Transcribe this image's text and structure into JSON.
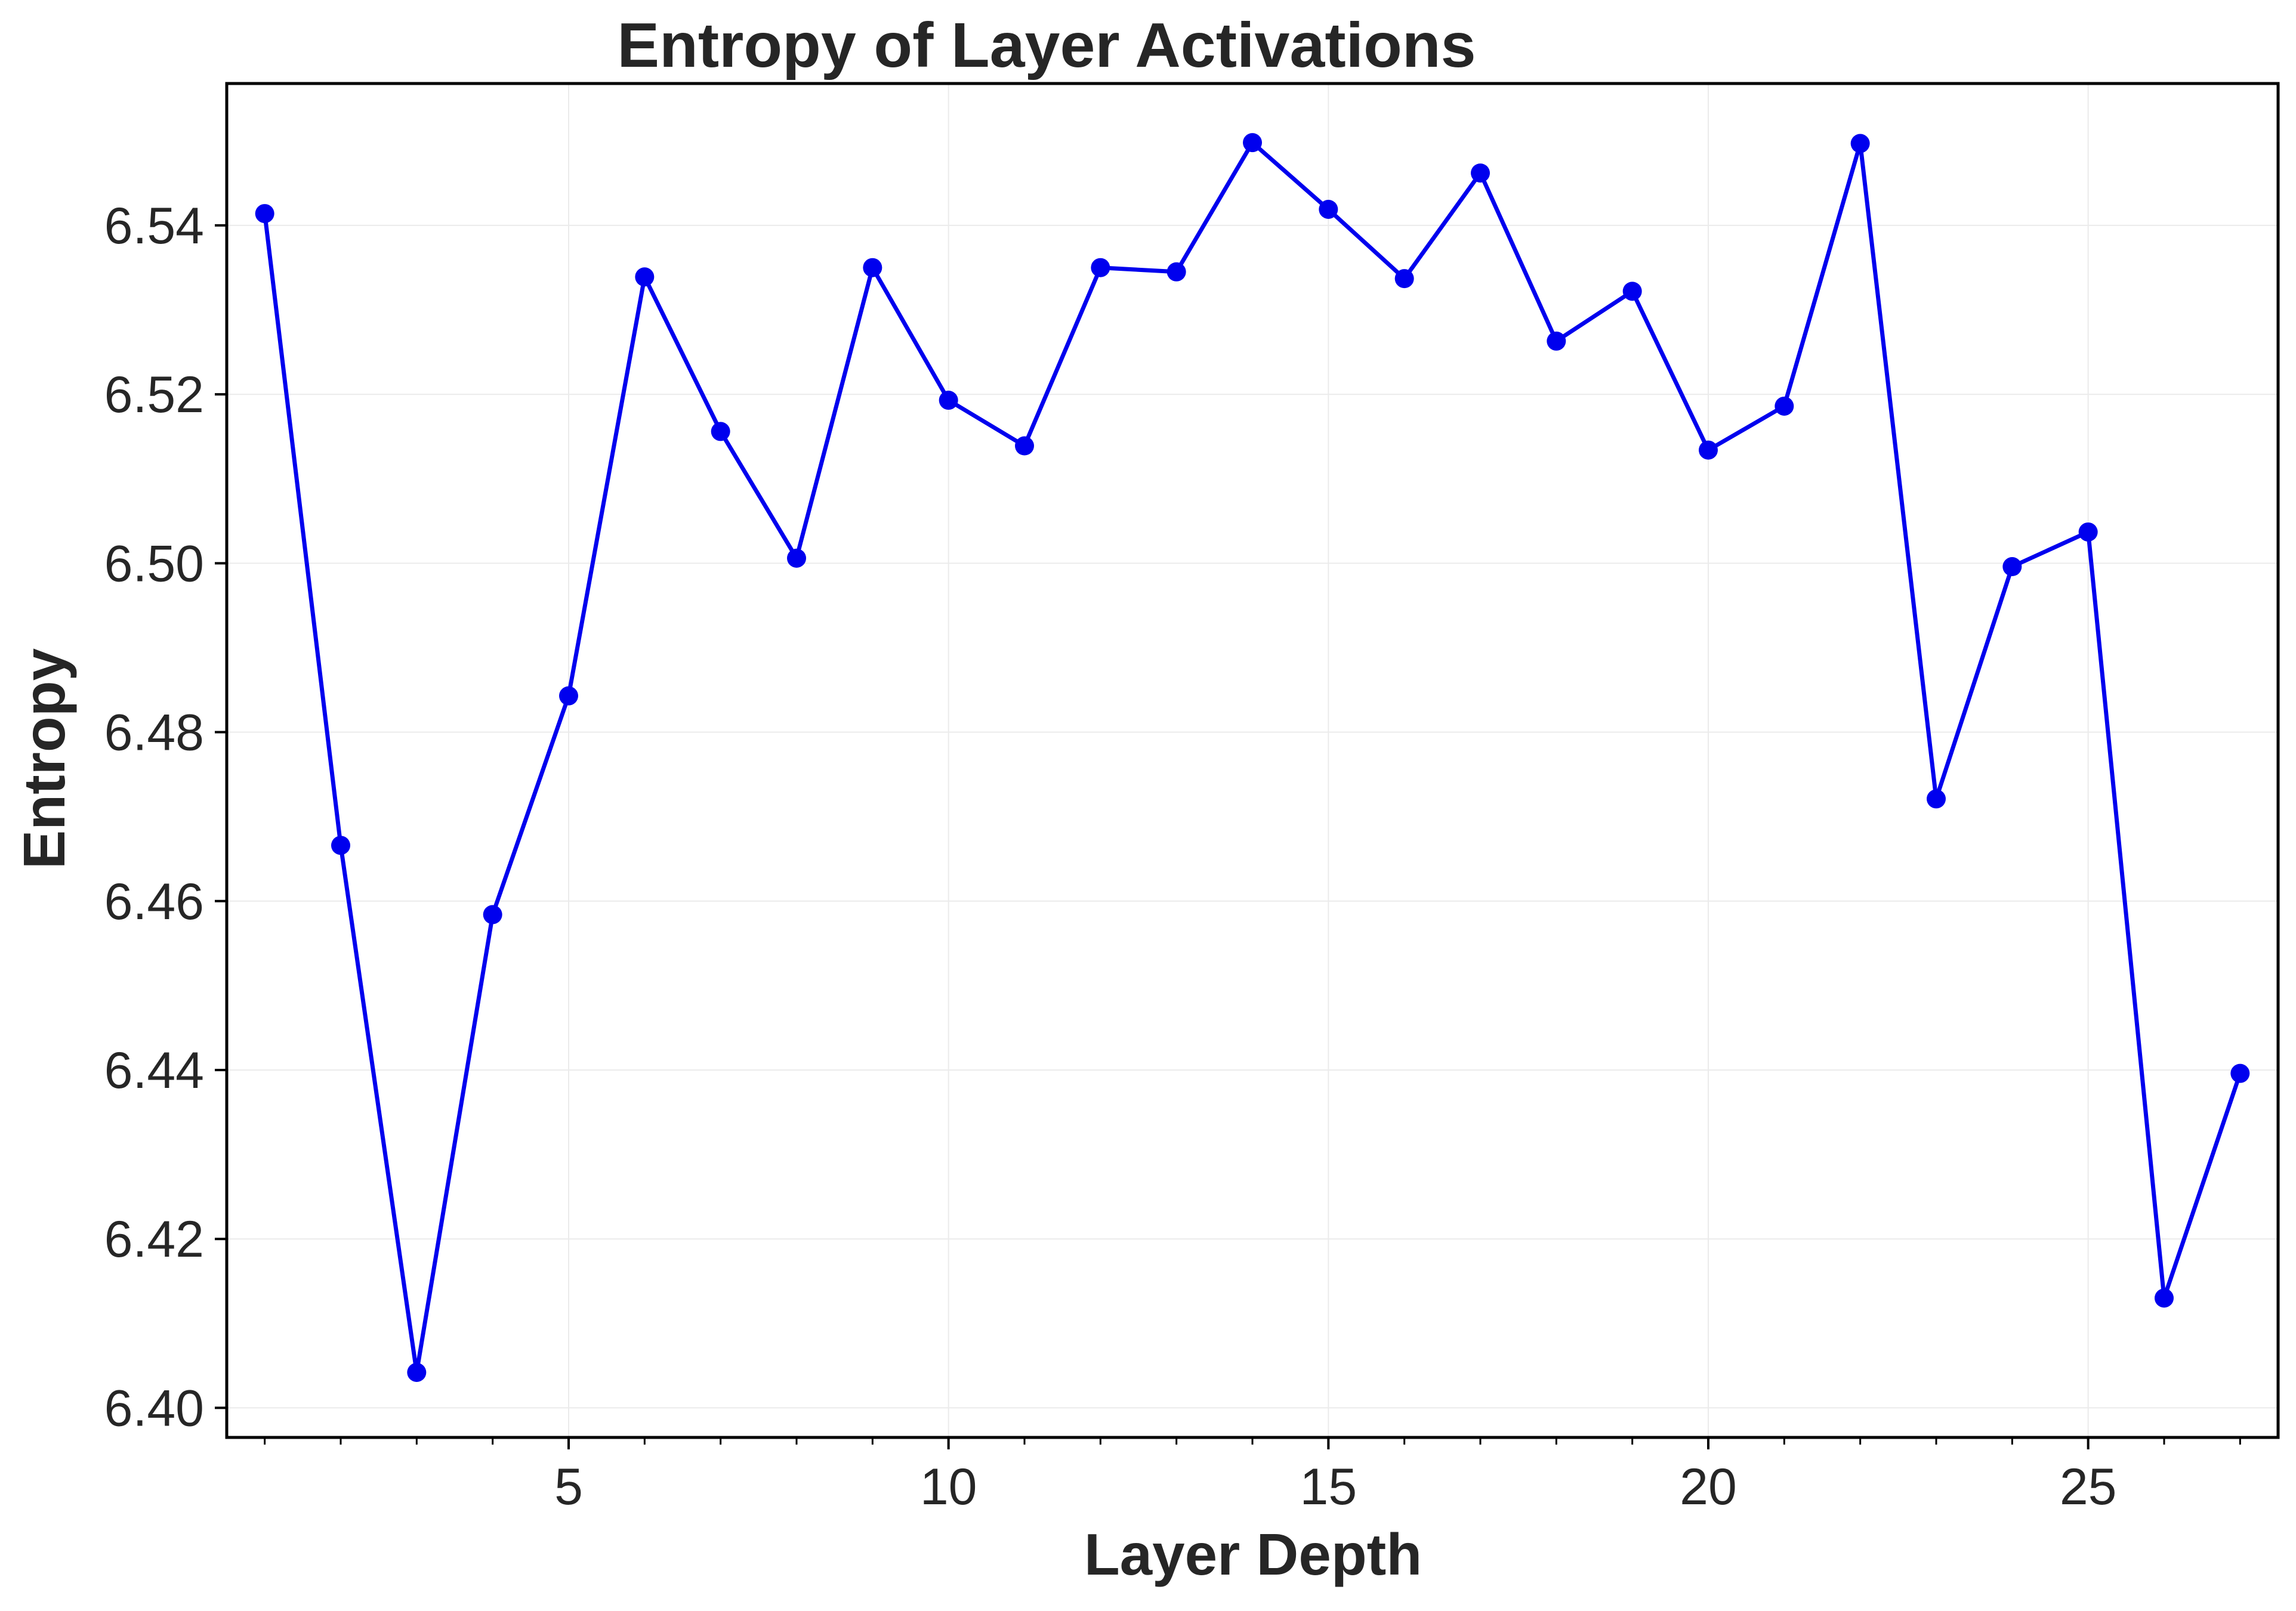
{
  "chart_data": {
    "type": "line",
    "title": "Entropy of Layer Activations",
    "xlabel": "Layer Depth",
    "ylabel": "Entropy",
    "xlim": [
      0.5,
      27.5
    ],
    "ylim": [
      6.3965,
      6.5568
    ],
    "xticks": [
      5,
      10,
      15,
      20,
      25
    ],
    "xtick_labels": [
      "5",
      "10",
      "15",
      "20",
      "25"
    ],
    "xminor_ticks": [
      1,
      2,
      3,
      4,
      5,
      6,
      7,
      8,
      9,
      10,
      11,
      12,
      13,
      14,
      15,
      16,
      17,
      18,
      19,
      20,
      21,
      22,
      23,
      24,
      25,
      26,
      27
    ],
    "yticks": [
      6.4,
      6.42,
      6.44,
      6.46,
      6.48,
      6.5,
      6.52,
      6.54
    ],
    "ytick_labels": [
      "6.40",
      "6.42",
      "6.44",
      "6.46",
      "6.48",
      "6.50",
      "6.52",
      "6.54"
    ],
    "grid": true,
    "series": [
      {
        "color": "#0000ee",
        "x": [
          1,
          2,
          3,
          4,
          5,
          6,
          7,
          8,
          9,
          10,
          11,
          12,
          13,
          14,
          15,
          16,
          17,
          18,
          19,
          20,
          21,
          22,
          23,
          24,
          25,
          26,
          27
        ],
        "values": [
          6.5414,
          6.4666,
          6.4042,
          6.4584,
          6.4843,
          6.5339,
          6.5156,
          6.5006,
          6.535,
          6.5193,
          6.5139,
          6.535,
          6.5345,
          6.5498,
          6.5419,
          6.5337,
          6.5462,
          6.5263,
          6.5322,
          6.5134,
          6.5186,
          6.5497,
          6.4721,
          6.4996,
          6.5037,
          6.413,
          6.4396
        ]
      }
    ]
  }
}
